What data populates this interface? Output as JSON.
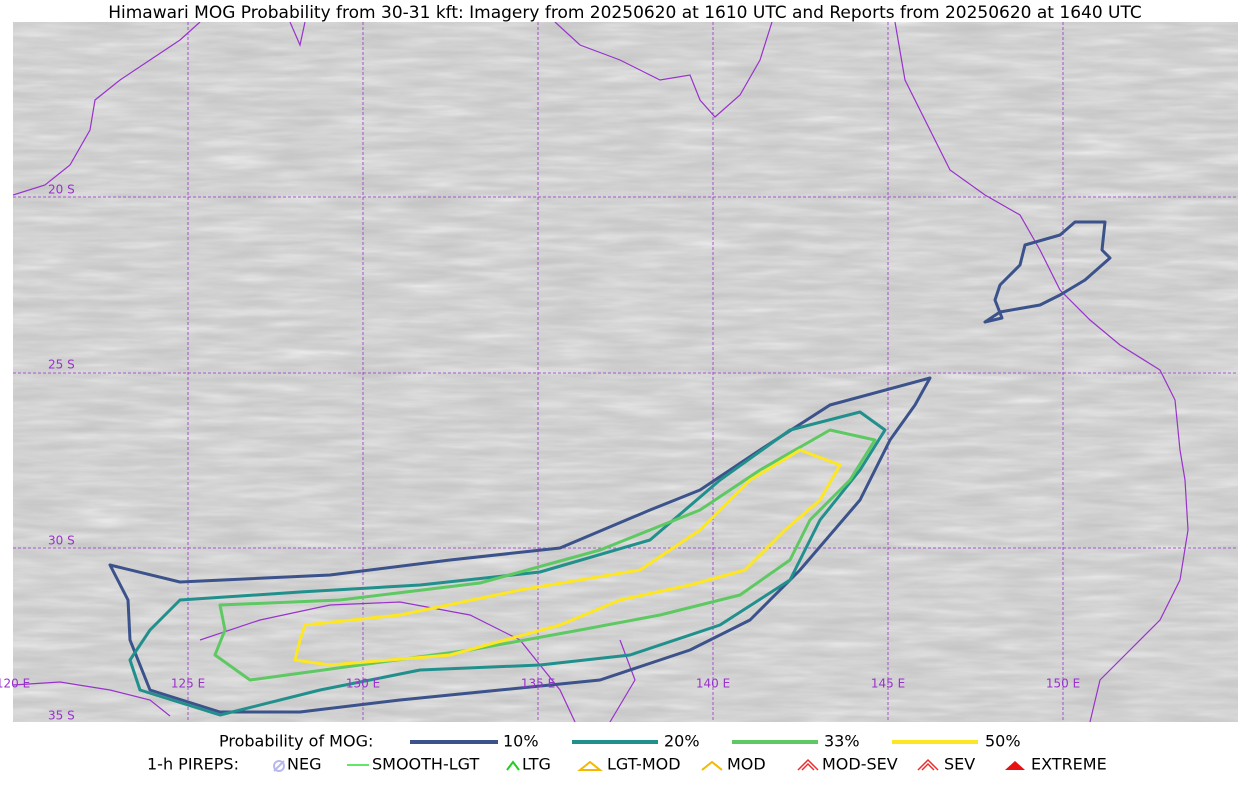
{
  "title": "Himawari MOG Probability from 30-31 kft: Imagery from 20250620 at 1610 UTC and Reports from 20250620 at 1640 UTC",
  "map": {
    "lat_labels": [
      "20 S",
      "25 S",
      "30 S",
      "35 S"
    ],
    "lon_labels": [
      "120 E",
      "125 E",
      "130 E",
      "135 E",
      "140 E",
      "145 E",
      "150 E"
    ]
  },
  "legend": {
    "probability": {
      "label": "Probability of MOG:",
      "items": [
        "10%",
        "20%",
        "33%",
        "50%"
      ]
    },
    "pireps": {
      "label": "1-h PIREPS:",
      "items": [
        "NEG",
        "SMOOTH-LGT",
        "LTG",
        "LGT-MOD",
        "MOD",
        "MOD-SEV",
        "SEV",
        "EXTREME"
      ]
    }
  }
}
